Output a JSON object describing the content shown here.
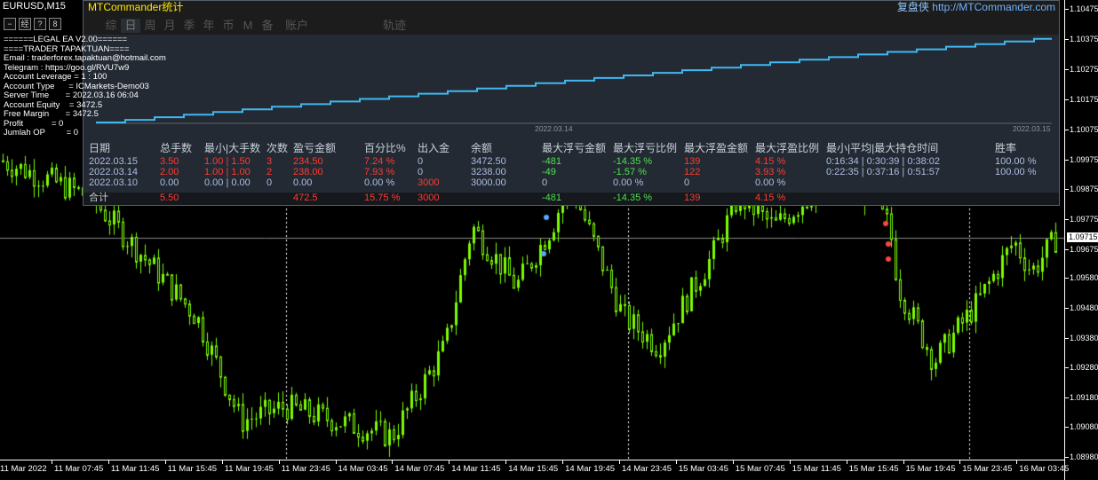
{
  "chart": {
    "symbol": "EURUSD,M15",
    "current_price": "1.09715",
    "candle_color": "#7cfc00",
    "price_labels": [
      "1.10475",
      "1.10375",
      "1.10275",
      "1.10175",
      "1.10075",
      "1.09975",
      "1.09875",
      "1.09775",
      "1.09675",
      "1.09580",
      "1.09480",
      "1.09380",
      "1.09280",
      "1.09180",
      "1.09080",
      "1.08980"
    ],
    "time_labels": [
      "11 Mar 2022",
      "11 Mar 07:45",
      "11 Mar 11:45",
      "11 Mar 15:45",
      "11 Mar 19:45",
      "11 Mar 23:45",
      "14 Mar 03:45",
      "14 Mar 07:45",
      "14 Mar 11:45",
      "14 Mar 15:45",
      "14 Mar 19:45",
      "14 Mar 23:45",
      "15 Mar 03:45",
      "15 Mar 07:45",
      "15 Mar 11:45",
      "15 Mar 15:45",
      "15 Mar 19:45",
      "15 Mar 23:45",
      "16 Mar 03:45"
    ]
  },
  "info_lines": [
    "======LEGAL EA V2.00======",
    "====TRADER TAPAKTUAN====",
    "Email : traderforex.tapaktuan@hotmail.com",
    "Telegram : https://goo.gl/RVU7w9",
    "Account Leverage = 1 : 100",
    "Account Type      = ICMarkets-Demo03",
    "Server Time       = 2022.03.16 06:04",
    "Account Equity    = 3472.5",
    "Free Margin       = 3472.5",
    "Profit            = 0",
    "Jumlah OP         = 0"
  ],
  "left_buttons": [
    "−",
    "经",
    "?",
    "8"
  ],
  "panel": {
    "title": "MTCommander统计",
    "brand": "复盘侠",
    "brand_url": "http://MTCommander.com",
    "tabs": [
      "综",
      "日",
      "周",
      "月",
      "季",
      "年",
      "币",
      "M",
      "备",
      "账户",
      "",
      "",
      "",
      "轨迹"
    ],
    "active_tab": "日",
    "equity_dates": [
      "2022.03.14",
      "2022.03.15"
    ],
    "equity_color": "#3fb8f0",
    "headers": [
      "日期",
      "总手数",
      "最小|大手数",
      "次数",
      "盈亏金额",
      "百分比%",
      "出入金",
      "余额",
      "最大浮亏金额",
      "最大浮亏比例",
      "最大浮盈金额",
      "最大浮盈比例",
      "最小|平均|最大持仓时间",
      "胜率"
    ],
    "rows": [
      [
        "2022.03.15",
        "3.50",
        "1.00 | 1.50",
        "3",
        "234.50",
        "7.24 %",
        "0",
        "3472.50",
        "-481",
        "-14.35 %",
        "139",
        "4.15 %",
        "0:16:34 | 0:30:39 | 0:38:02",
        "100.00 %"
      ],
      [
        "2022.03.14",
        "2.00",
        "1.00 | 1.00",
        "2",
        "238.00",
        "7.93 %",
        "0",
        "3238.00",
        "-49",
        "-1.57 %",
        "122",
        "3.93 %",
        "0:22:35 | 0:37:16 | 0:51:57",
        "100.00 %"
      ],
      [
        "2022.03.10",
        "0.00",
        "0.00 | 0.00",
        "0",
        "0.00",
        "0.00 %",
        "3000",
        "3000.00",
        "0",
        "0.00 %",
        "0",
        "0.00 %",
        "",
        ""
      ]
    ],
    "total": [
      "合计",
      "5.50",
      "",
      "",
      "472.5",
      "15.75 %",
      "3000",
      "",
      "-481",
      "-14.35 %",
      "139",
      "4.15 %",
      "",
      ""
    ]
  }
}
